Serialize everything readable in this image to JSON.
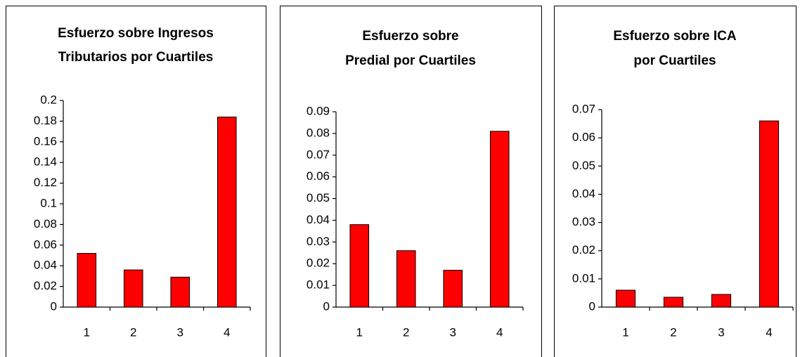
{
  "chart_data": [
    {
      "type": "bar",
      "title": [
        "Esfuerzo sobre Ingresos",
        "Tributarios por Cuartiles"
      ],
      "categories": [
        "1",
        "2",
        "3",
        "4"
      ],
      "values": [
        0.052,
        0.036,
        0.029,
        0.184
      ],
      "color": "#ff0000",
      "ylim": [
        0,
        0.2
      ],
      "yticks": [
        0,
        0.02,
        0.04,
        0.06,
        0.08,
        0.1,
        0.12,
        0.14,
        0.16,
        0.18,
        0.2
      ]
    },
    {
      "type": "bar",
      "title": [
        "Esfuerzo sobre",
        "Predial por Cuartiles"
      ],
      "categories": [
        "1",
        "2",
        "3",
        "4"
      ],
      "values": [
        0.038,
        0.026,
        0.017,
        0.081
      ],
      "color": "#ff0000",
      "ylim": [
        0,
        0.09
      ],
      "yticks": [
        0,
        0.01,
        0.02,
        0.03,
        0.04,
        0.05,
        0.06,
        0.07,
        0.08,
        0.09
      ]
    },
    {
      "type": "bar",
      "title": [
        "Esfuerzo sobre ICA",
        "por Cuartiles"
      ],
      "categories": [
        "1",
        "2",
        "3",
        "4"
      ],
      "values": [
        0.006,
        0.0035,
        0.0045,
        0.066
      ],
      "color": "#ff0000",
      "ylim": [
        0,
        0.07
      ],
      "yticks": [
        0,
        0.01,
        0.02,
        0.03,
        0.04,
        0.05,
        0.06,
        0.07
      ]
    }
  ]
}
